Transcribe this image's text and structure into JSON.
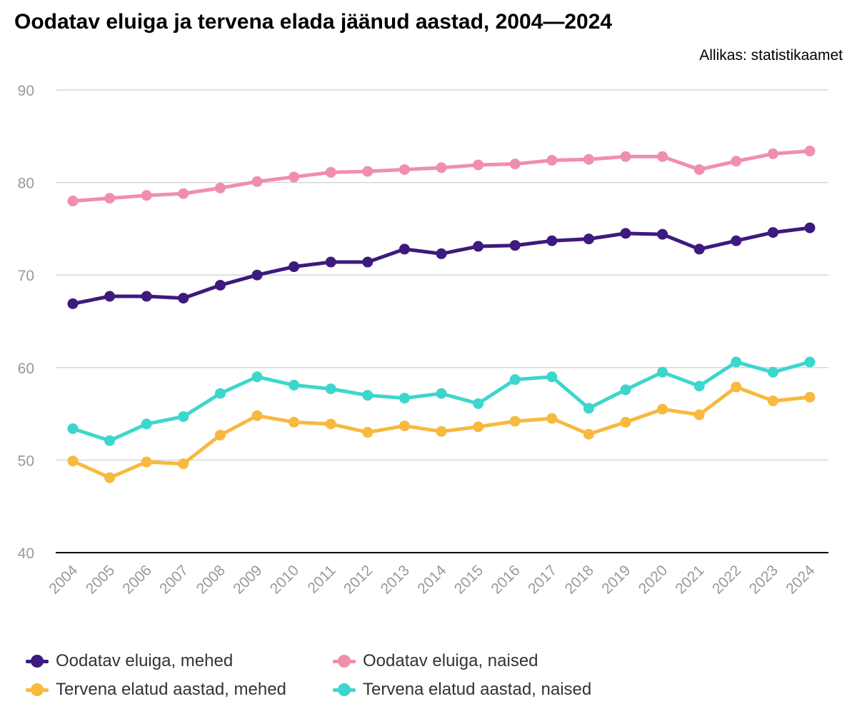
{
  "title": "Oodatav eluiga ja tervena elada jäänud aastad, 2004—2024",
  "source": "Allikas: statistikaamet",
  "chart_data": {
    "type": "line",
    "title": "Oodatav eluiga ja tervena elada jäänud aastad, 2004—2024",
    "xlabel": "",
    "ylabel": "",
    "ylim": [
      40,
      90
    ],
    "yticks": [
      40,
      50,
      60,
      70,
      80,
      90
    ],
    "grid": true,
    "legend_position": "bottom",
    "categories": [
      "2004",
      "2005",
      "2006",
      "2007",
      "2008",
      "2009",
      "2010",
      "2011",
      "2012",
      "2013",
      "2014",
      "2015",
      "2016",
      "2017",
      "2018",
      "2019",
      "2020",
      "2021",
      "2022",
      "2023",
      "2024"
    ],
    "series": [
      {
        "name": "Oodatav eluiga, mehed",
        "color": "#3d1a7d",
        "values": [
          66.9,
          67.7,
          67.7,
          67.5,
          68.9,
          70.0,
          70.9,
          71.4,
          71.4,
          72.8,
          72.3,
          73.1,
          73.2,
          73.7,
          73.9,
          74.5,
          74.4,
          72.8,
          73.7,
          74.6,
          75.1
        ]
      },
      {
        "name": "Oodatav eluiga, naised",
        "color": "#f08fab",
        "values": [
          78.0,
          78.3,
          78.6,
          78.8,
          79.4,
          80.1,
          80.6,
          81.1,
          81.2,
          81.4,
          81.6,
          81.9,
          82.0,
          82.4,
          82.5,
          82.8,
          82.8,
          81.4,
          82.3,
          83.1,
          83.4
        ]
      },
      {
        "name": "Tervena elatud aastad, mehed",
        "color": "#f7b93e",
        "values": [
          49.9,
          48.1,
          49.8,
          49.6,
          52.7,
          54.8,
          54.1,
          53.9,
          53.0,
          53.7,
          53.1,
          53.6,
          54.2,
          54.5,
          52.8,
          54.1,
          55.5,
          54.9,
          57.9,
          56.4,
          56.8
        ]
      },
      {
        "name": "Tervena elatud aastad, naised",
        "color": "#3dd6cc",
        "values": [
          53.4,
          52.1,
          53.9,
          54.7,
          57.2,
          59.0,
          58.1,
          57.7,
          57.0,
          56.7,
          57.2,
          56.1,
          58.7,
          59.0,
          55.6,
          57.6,
          59.5,
          58.0,
          60.6,
          59.5,
          60.6
        ]
      }
    ]
  }
}
